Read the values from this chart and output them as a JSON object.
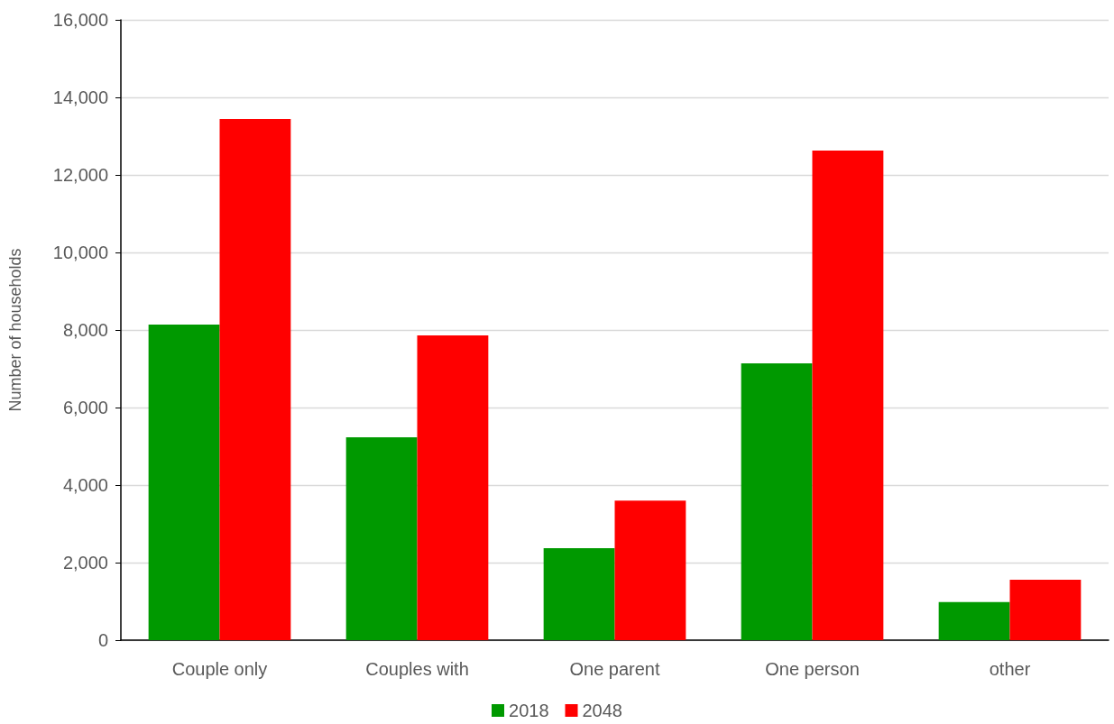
{
  "chart_data": {
    "type": "bar",
    "ylabel": "Number of households",
    "categories": [
      "Couple only",
      "Couples with",
      "One parent",
      "One person",
      "other"
    ],
    "series": [
      {
        "name": "2018",
        "color": "#009900",
        "values": [
          8140,
          5230,
          2370,
          7140,
          980
        ]
      },
      {
        "name": "2048",
        "color": "#ff0000",
        "values": [
          13440,
          7860,
          3600,
          12630,
          1560
        ]
      }
    ],
    "ylim": [
      0,
      16000
    ],
    "yticks": [
      {
        "value": 0,
        "label": "0"
      },
      {
        "value": 2000,
        "label": "2,000"
      },
      {
        "value": 4000,
        "label": "4,000"
      },
      {
        "value": 6000,
        "label": "6,000"
      },
      {
        "value": 8000,
        "label": "8,000"
      },
      {
        "value": 10000,
        "label": "10,000"
      },
      {
        "value": 12000,
        "label": "12,000"
      },
      {
        "value": 14000,
        "label": "14,000"
      },
      {
        "value": 16000,
        "label": "16,000"
      }
    ],
    "grid": "y",
    "legend": "bottom"
  }
}
